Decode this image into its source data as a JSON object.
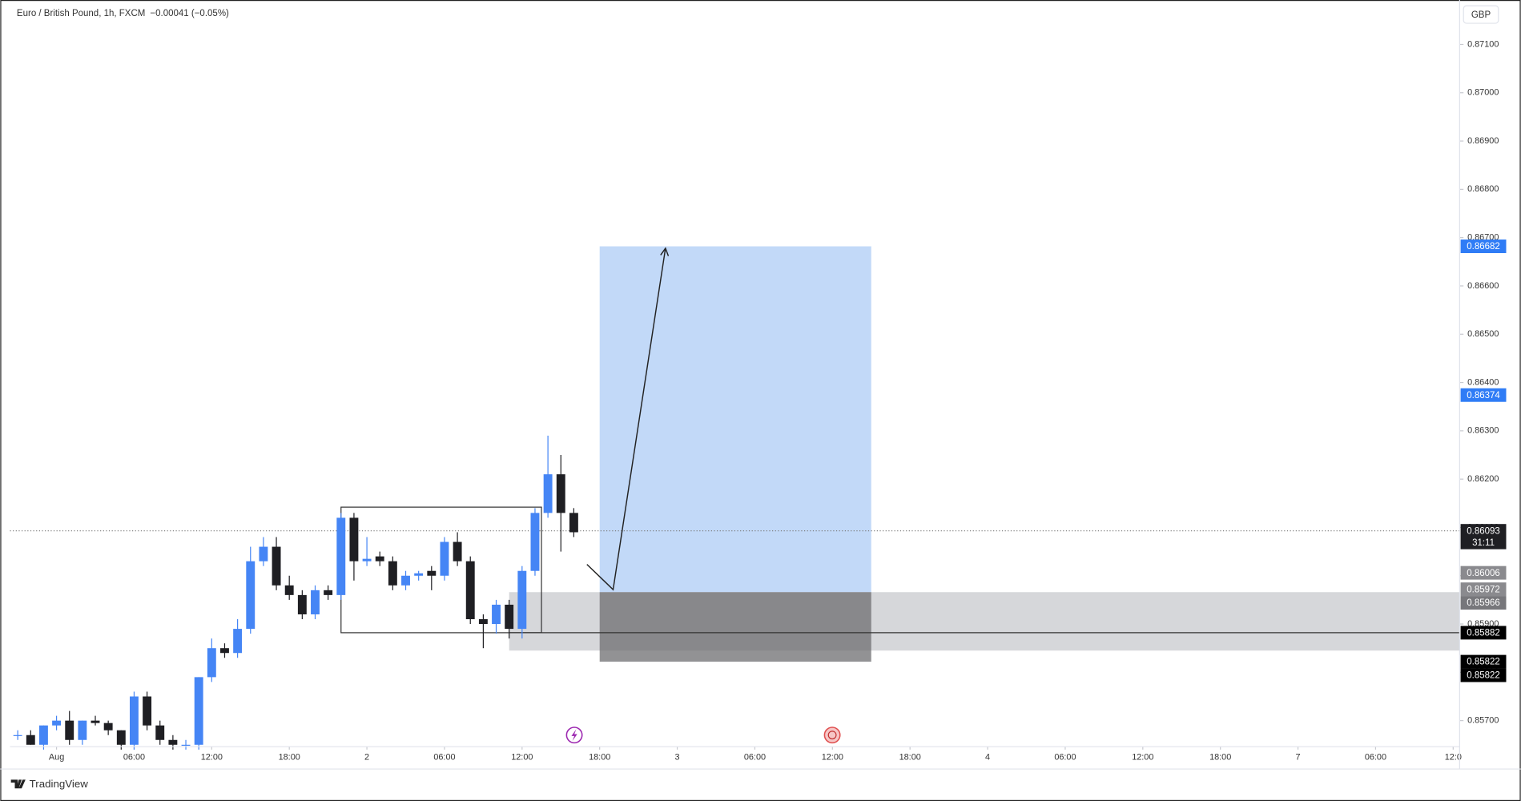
{
  "chart_data": {
    "type": "candlestick",
    "title": "Euro / British Pound, 1h, FXCM",
    "change": "−0.00041 (−0.05%)",
    "currency": "GBP",
    "brand": "TradingView",
    "up_color": "#4585f5",
    "down_color": "#1f1f23",
    "x": [
      -3,
      -2,
      -1,
      0,
      1,
      2,
      3,
      4,
      5,
      6,
      7,
      8,
      9,
      10,
      11,
      12,
      13,
      14,
      15,
      16,
      17,
      18,
      19,
      20,
      21,
      22,
      23,
      24,
      25,
      26,
      27,
      28,
      29,
      30,
      31,
      32,
      33,
      34,
      35,
      36,
      37,
      38,
      39,
      40
    ],
    "open": [
      0.8567,
      0.8567,
      0.8565,
      0.8569,
      0.857,
      0.8566,
      0.857,
      0.85695,
      0.8568,
      0.8565,
      0.8575,
      0.8569,
      0.8566,
      0.8565,
      0.8565,
      0.8579,
      0.8585,
      0.8584,
      0.8589,
      0.8603,
      0.8606,
      0.8598,
      0.8596,
      0.8592,
      0.8597,
      0.8596,
      0.8612,
      0.8603,
      0.8604,
      0.8603,
      0.8598,
      0.86,
      0.8601,
      0.86,
      0.8607,
      0.8603,
      0.8591,
      0.859,
      0.8594,
      0.8589,
      0.8601,
      0.8613,
      0.8621,
      0.8613
    ],
    "high": [
      0.8568,
      0.8568,
      0.8569,
      0.8571,
      0.8572,
      0.857,
      0.8571,
      0.857,
      0.8568,
      0.8576,
      0.8576,
      0.857,
      0.8567,
      0.8566,
      0.8579,
      0.8587,
      0.8586,
      0.8591,
      0.8606,
      0.8608,
      0.8608,
      0.86,
      0.8597,
      0.8598,
      0.8598,
      0.8613,
      0.8613,
      0.8608,
      0.8605,
      0.8604,
      0.8601,
      0.8601,
      0.8602,
      0.8608,
      0.8609,
      0.8604,
      0.8592,
      0.8595,
      0.8595,
      0.8602,
      0.8614,
      0.8629,
      0.8625,
      0.8614
    ],
    "low": [
      0.8566,
      0.8565,
      0.8564,
      0.8568,
      0.8565,
      0.8565,
      0.8569,
      0.8567,
      0.8564,
      0.8564,
      0.8568,
      0.8565,
      0.8564,
      0.8564,
      0.8564,
      0.8578,
      0.8583,
      0.8583,
      0.8588,
      0.8602,
      0.8597,
      0.8595,
      0.8591,
      0.8591,
      0.8595,
      0.8595,
      0.8599,
      0.8602,
      0.8602,
      0.8597,
      0.8597,
      0.8599,
      0.8597,
      0.8599,
      0.8602,
      0.859,
      0.8585,
      0.8588,
      0.8587,
      0.8587,
      0.86,
      0.8612,
      0.8605,
      0.8608
    ],
    "close": [
      0.8567,
      0.8565,
      0.8569,
      0.857,
      0.8566,
      0.857,
      0.85695,
      0.8568,
      0.8565,
      0.8575,
      0.8569,
      0.8566,
      0.8565,
      0.8565,
      0.8579,
      0.8585,
      0.8584,
      0.8589,
      0.8603,
      0.8606,
      0.8598,
      0.8596,
      0.8592,
      0.8597,
      0.8596,
      0.8612,
      0.8603,
      0.86035,
      0.8603,
      0.8598,
      0.86,
      0.86005,
      0.86,
      0.8607,
      0.8603,
      0.8591,
      0.859,
      0.8594,
      0.8589,
      0.8601,
      0.8613,
      0.8621,
      0.8613,
      0.8609
    ],
    "xlim": [
      -3.6,
      108.5
    ],
    "ylim": [
      0.85646,
      0.87192
    ],
    "xticks": [
      {
        "value": 0,
        "label": "Aug"
      },
      {
        "value": 6,
        "label": "06:00"
      },
      {
        "value": 12,
        "label": "12:00"
      },
      {
        "value": 18,
        "label": "18:00"
      },
      {
        "value": 24,
        "label": "2"
      },
      {
        "value": 30,
        "label": "06:00"
      },
      {
        "value": 36,
        "label": "12:00"
      },
      {
        "value": 42,
        "label": "18:00"
      },
      {
        "value": 48,
        "label": "3"
      },
      {
        "value": 54,
        "label": "06:00"
      },
      {
        "value": 60,
        "label": "12:00"
      },
      {
        "value": 66,
        "label": "18:00"
      },
      {
        "value": 72,
        "label": "4"
      },
      {
        "value": 78,
        "label": "06:00"
      },
      {
        "value": 84,
        "label": "12:00"
      },
      {
        "value": 90,
        "label": "18:00"
      },
      {
        "value": 96,
        "label": "7"
      },
      {
        "value": 102,
        "label": "06:00"
      },
      {
        "value": 108,
        "label": "12:0"
      }
    ],
    "yticks": [
      {
        "value": 0.871,
        "label": "0.87100"
      },
      {
        "value": 0.87,
        "label": "0.87000"
      },
      {
        "value": 0.869,
        "label": "0.86900"
      },
      {
        "value": 0.868,
        "label": "0.86800"
      },
      {
        "value": 0.867,
        "label": "0.86700"
      },
      {
        "value": 0.866,
        "label": "0.86600"
      },
      {
        "value": 0.865,
        "label": "0.86500"
      },
      {
        "value": 0.864,
        "label": "0.86400"
      },
      {
        "value": 0.863,
        "label": "0.86300"
      },
      {
        "value": 0.862,
        "label": "0.86200"
      },
      {
        "value": 0.861,
        "label": "0.86100"
      },
      {
        "value": 0.86,
        "label": "0.86000"
      },
      {
        "value": 0.859,
        "label": "0.85900"
      },
      {
        "value": 0.858,
        "label": "0.85800"
      },
      {
        "value": 0.857,
        "label": "0.85700"
      }
    ],
    "last_price": 0.86093,
    "countdown": "31:11",
    "price_labels": [
      {
        "value": 0.86682,
        "color": "#2f7cf6"
      },
      {
        "value": 0.86374,
        "color": "#2f7cf6"
      },
      {
        "value": 0.86093,
        "color": "#1f1f23"
      },
      {
        "value": 0.86006,
        "color": "#8a8a8e"
      },
      {
        "value": 0.85972,
        "color": "#8a8a8e"
      },
      {
        "value": 0.85966,
        "color": "#77777b"
      },
      {
        "value": 0.85882,
        "color": "#000000"
      },
      {
        "value": 0.85822,
        "color": "#000000"
      },
      {
        "value": 0.85822,
        "color": "#000000"
      }
    ],
    "range_box": {
      "x": [
        22,
        37.5
      ],
      "y": [
        0.85882,
        0.86142
      ]
    },
    "zone": {
      "x": [
        35,
        108.5
      ],
      "y": [
        0.85845,
        0.85966
      ]
    },
    "level": 0.85882,
    "position": {
      "x": [
        42,
        63
      ],
      "entry": 0.85966,
      "target": 0.86682,
      "stop": 0.85822
    }
  }
}
